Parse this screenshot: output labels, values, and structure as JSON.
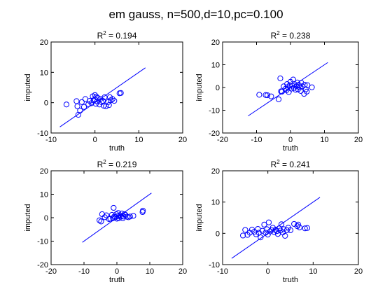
{
  "figure": {
    "title": "em gauss, n=500,d=10,pc=0.100"
  },
  "colors": {
    "marker": "#0000ff",
    "fit_line": "#0000ff",
    "axes": "#000000",
    "background": "#ffffff"
  },
  "chart_data": [
    {
      "type": "scatter",
      "title_text": " = 0.194",
      "title_base": "R",
      "title_sup": "2",
      "xlabel": "truth",
      "ylabel": "imputed",
      "xlim": [
        -10,
        20
      ],
      "ylim": [
        -10,
        20
      ],
      "xticks": [
        -10,
        0,
        10,
        20
      ],
      "yticks": [
        -10,
        0,
        10,
        20
      ],
      "grid": false,
      "fit_line": [
        [
          -8,
          -8
        ],
        [
          11.5,
          11.5
        ]
      ],
      "points": [
        [
          -6.5,
          -0.6
        ],
        [
          -4.2,
          0.5
        ],
        [
          -4,
          -1.2
        ],
        [
          -3.8,
          -4
        ],
        [
          -3.4,
          -2.6
        ],
        [
          -3,
          0.2
        ],
        [
          -2.5,
          -1.4
        ],
        [
          -2.2,
          1.2
        ],
        [
          -1.5,
          -0.5
        ],
        [
          -1.2,
          0.6
        ],
        [
          -0.8,
          -0.2
        ],
        [
          -0.5,
          2.1
        ],
        [
          -0.3,
          0.8
        ],
        [
          0,
          2.5
        ],
        [
          0,
          1
        ],
        [
          0.2,
          -0.4
        ],
        [
          0.3,
          2
        ],
        [
          0.5,
          0.4
        ],
        [
          0.6,
          1.6
        ],
        [
          1,
          -0.6
        ],
        [
          1.2,
          1.2
        ],
        [
          1.5,
          0.2
        ],
        [
          1.8,
          0.6
        ],
        [
          2,
          -1
        ],
        [
          2.2,
          1.8
        ],
        [
          2.5,
          -1.2
        ],
        [
          3,
          0.2
        ],
        [
          3.2,
          -0.8
        ],
        [
          3.4,
          1.8
        ],
        [
          3.6,
          0.8
        ],
        [
          4,
          1.2
        ],
        [
          4.4,
          0.6
        ],
        [
          5.6,
          3.1
        ],
        [
          5.9,
          3.2
        ]
      ]
    },
    {
      "type": "scatter",
      "title_text": " = 0.238",
      "title_base": "R",
      "title_sup": "2",
      "xlabel": "truth",
      "ylabel": "imputed",
      "xlim": [
        -20,
        20
      ],
      "ylim": [
        -20,
        20
      ],
      "xticks": [
        -20,
        -10,
        0,
        10,
        20
      ],
      "yticks": [
        -20,
        -10,
        0,
        10,
        20
      ],
      "grid": false,
      "fit_line": [
        [
          -12.5,
          -12.5
        ],
        [
          11,
          11
        ]
      ],
      "points": [
        [
          -9.2,
          -3.2
        ],
        [
          -7.3,
          -3.3
        ],
        [
          -6.8,
          -3.4
        ],
        [
          -5.7,
          -3.9
        ],
        [
          -3.5,
          -5.2
        ],
        [
          -3,
          4
        ],
        [
          -2.8,
          -1.7
        ],
        [
          -2.5,
          -1.8
        ],
        [
          -2,
          0.5
        ],
        [
          -1.5,
          -0.6
        ],
        [
          -1.2,
          -1.2
        ],
        [
          -1,
          1.5
        ],
        [
          -0.8,
          0.2
        ],
        [
          -0.5,
          -2
        ],
        [
          -0.2,
          1
        ],
        [
          0,
          2.5
        ],
        [
          0.2,
          -0.5
        ],
        [
          0.5,
          0.8
        ],
        [
          0.8,
          3.5
        ],
        [
          1,
          -0.2
        ],
        [
          1.2,
          1.5
        ],
        [
          1.5,
          -1
        ],
        [
          1.8,
          0.5
        ],
        [
          2,
          2.2
        ],
        [
          2.2,
          -0.8
        ],
        [
          2.5,
          1
        ],
        [
          2.8,
          0
        ],
        [
          3,
          -1.5
        ],
        [
          3.2,
          2
        ],
        [
          3.5,
          0.5
        ],
        [
          4,
          -2.8
        ],
        [
          4.2,
          1.2
        ],
        [
          4.5,
          -0.8
        ],
        [
          4.8,
          -1.8
        ],
        [
          5,
          1
        ],
        [
          6.3,
          0.1
        ]
      ]
    },
    {
      "type": "scatter",
      "title_text": " = 0.219",
      "title_base": "R",
      "title_sup": "2",
      "xlabel": "truth",
      "ylabel": "imputed",
      "xlim": [
        -20,
        20
      ],
      "ylim": [
        -20,
        20
      ],
      "xticks": [
        -20,
        -10,
        0,
        10,
        20
      ],
      "yticks": [
        -20,
        -10,
        0,
        10,
        20
      ],
      "grid": false,
      "fit_line": [
        [
          -10.5,
          -10.5
        ],
        [
          10.5,
          10.5
        ]
      ],
      "points": [
        [
          -5.3,
          -1.1
        ],
        [
          -4.8,
          -1.6
        ],
        [
          -4.5,
          1.5
        ],
        [
          -3.7,
          0.2
        ],
        [
          -3.2,
          1
        ],
        [
          -2.4,
          -0.6
        ],
        [
          -2,
          -0.4
        ],
        [
          -1.5,
          1.2
        ],
        [
          -1.2,
          -0.2
        ],
        [
          -1,
          4.2
        ],
        [
          -0.8,
          0.5
        ],
        [
          -0.5,
          0.2
        ],
        [
          -0.2,
          1.5
        ],
        [
          0,
          -0.4
        ],
        [
          0.2,
          0.6
        ],
        [
          0.4,
          2
        ],
        [
          0.6,
          -0.2
        ],
        [
          0.9,
          1
        ],
        [
          1.2,
          0.4
        ],
        [
          1.5,
          1.8
        ],
        [
          1.8,
          -0.2
        ],
        [
          2,
          0.5
        ],
        [
          2.3,
          1.5
        ],
        [
          2.6,
          1.2
        ],
        [
          3,
          0.4
        ],
        [
          3.5,
          0.2
        ],
        [
          4,
          0.5
        ],
        [
          5,
          0.8
        ],
        [
          7.8,
          2.4
        ],
        [
          7.9,
          3
        ]
      ]
    },
    {
      "type": "scatter",
      "title_text": " = 0.241",
      "title_base": "R",
      "title_sup": "2",
      "xlabel": "truth",
      "ylabel": "imputed",
      "xlim": [
        -10,
        20
      ],
      "ylim": [
        -10,
        20
      ],
      "xticks": [
        -10,
        0,
        10,
        20
      ],
      "yticks": [
        -10,
        0,
        10,
        20
      ],
      "grid": false,
      "fit_line": [
        [
          -8,
          -8
        ],
        [
          11.5,
          11.5
        ]
      ],
      "points": [
        [
          -5.5,
          -0.7
        ],
        [
          -5,
          1.1
        ],
        [
          -4.5,
          -0.5
        ],
        [
          -4,
          0.2
        ],
        [
          -3.5,
          1.2
        ],
        [
          -3,
          0.5
        ],
        [
          -2.6,
          -0.3
        ],
        [
          -2.2,
          1.4
        ],
        [
          -2,
          0.2
        ],
        [
          -1.6,
          -1.3
        ],
        [
          -1.2,
          0.8
        ],
        [
          -0.8,
          2.8
        ],
        [
          -0.5,
          0.2
        ],
        [
          -0.2,
          1.3
        ],
        [
          0,
          -0.4
        ],
        [
          0.2,
          3.5
        ],
        [
          0.5,
          0.6
        ],
        [
          0.8,
          1
        ],
        [
          1.1,
          1.8
        ],
        [
          1.4,
          0.4
        ],
        [
          1.7,
          1.2
        ],
        [
          2,
          0.7
        ],
        [
          2.2,
          -0.2
        ],
        [
          2.5,
          1.6
        ],
        [
          2.8,
          0.9
        ],
        [
          3,
          2.9
        ],
        [
          3.3,
          0.3
        ],
        [
          3.5,
          1.3
        ],
        [
          3.8,
          -0.8
        ],
        [
          4.2,
          1
        ],
        [
          4.5,
          1.8
        ],
        [
          5,
          1
        ],
        [
          5.8,
          3
        ],
        [
          6.5,
          2.3
        ],
        [
          6.7,
          2.8
        ],
        [
          7,
          1.9
        ],
        [
          8.2,
          1.6
        ],
        [
          8.7,
          1.7
        ]
      ]
    }
  ]
}
